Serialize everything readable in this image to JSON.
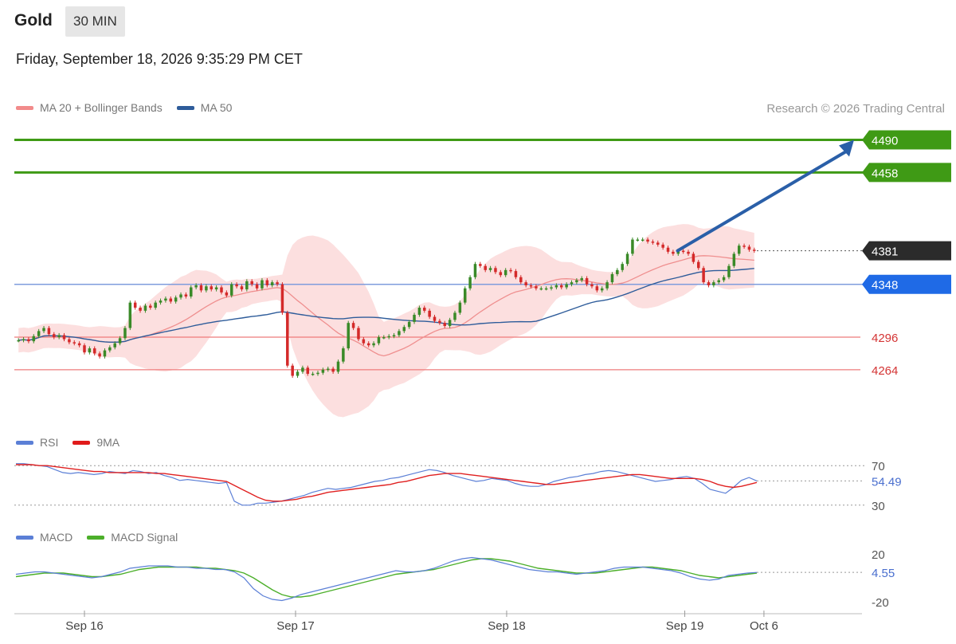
{
  "header": {
    "symbol": "Gold",
    "timeframe": "30 MIN",
    "datetime": "Friday, September 18, 2026 9:35:29 PM CET"
  },
  "legends": {
    "price": [
      {
        "label": "MA 20 + Bollinger Bands",
        "color": "#f28b8b"
      },
      {
        "label": "MA 50",
        "color": "#2e5c9a"
      }
    ],
    "rsi": [
      {
        "label": "RSI",
        "color": "#5b7fd6"
      },
      {
        "label": "9MA",
        "color": "#e01b1b"
      }
    ],
    "macd": [
      {
        "label": "MACD",
        "color": "#5b7fd6"
      },
      {
        "label": "MACD Signal",
        "color": "#4caf2a"
      }
    ]
  },
  "credit": "Research © 2026 Trading Central",
  "chart_data": [
    {
      "type": "candlestick",
      "panel": "price",
      "ylim": [
        4220,
        4510
      ],
      "xlim": [
        0,
        148
      ],
      "levels": [
        {
          "value": 4490,
          "label": "4490",
          "role": "target",
          "color": "#3f9a15"
        },
        {
          "value": 4458,
          "label": "4458",
          "role": "target",
          "color": "#3f9a15"
        },
        {
          "value": 4381,
          "label": "4381",
          "role": "last",
          "color": "#2b2b2b"
        },
        {
          "value": 4348,
          "label": "4348",
          "role": "pivot",
          "color": "#1f6ae6"
        },
        {
          "value": 4296,
          "label": "4296",
          "role": "support",
          "color": "#e04040"
        },
        {
          "value": 4264,
          "label": "4264",
          "role": "support",
          "color": "#e04040"
        }
      ],
      "arrow": {
        "from": [
          128,
          4381
        ],
        "to": [
          143,
          4490
        ],
        "color": "#2a5fa8"
      },
      "closes": [
        4293,
        4294,
        4292,
        4297,
        4302,
        4305,
        4299,
        4296,
        4298,
        4294,
        4291,
        4290,
        4288,
        4281,
        4285,
        4280,
        4277,
        4283,
        4286,
        4290,
        4295,
        4305,
        4330,
        4325,
        4322,
        4327,
        4325,
        4330,
        4332,
        4334,
        4331,
        4335,
        4338,
        4336,
        4345,
        4347,
        4342,
        4346,
        4343,
        4345,
        4340,
        4337,
        4348,
        4346,
        4343,
        4351,
        4348,
        4344,
        4352,
        4347,
        4350,
        4348,
        4320,
        4268,
        4258,
        4262,
        4266,
        4260,
        4260,
        4261,
        4264,
        4265,
        4262,
        4272,
        4285,
        4310,
        4305,
        4294,
        4290,
        4288,
        4290,
        4296,
        4296,
        4297,
        4298,
        4302,
        4306,
        4311,
        4318,
        4325,
        4322,
        4316,
        4312,
        4310,
        4307,
        4313,
        4320,
        4330,
        4344,
        4355,
        4368,
        4366,
        4362,
        4364,
        4360,
        4357,
        4362,
        4361,
        4355,
        4350,
        4347,
        4346,
        4344,
        4344,
        4344,
        4345,
        4347,
        4345,
        4348,
        4350,
        4352,
        4354,
        4348,
        4346,
        4342,
        4344,
        4350,
        4358,
        4362,
        4368,
        4378,
        4392,
        4392,
        4392,
        4390,
        4389,
        4387,
        4384,
        4380,
        4378,
        4381,
        4380,
        4378,
        4370,
        4364,
        4350,
        4347,
        4350,
        4352,
        4355,
        4366,
        4378,
        4386,
        4385,
        4382,
        4381
      ],
      "xticks": [
        {
          "x": 10,
          "label": "Sep 16"
        },
        {
          "x": 42,
          "label": "Sep 17"
        },
        {
          "x": 74,
          "label": "Sep 18"
        },
        {
          "x": 101,
          "label": "Sep 19"
        },
        {
          "x": 113,
          "label": "Oct 6"
        }
      ]
    },
    {
      "type": "line",
      "panel": "rsi",
      "ylim": [
        25,
        75
      ],
      "levels": [
        {
          "value": 70,
          "label": "70"
        },
        {
          "value": 30,
          "label": "30"
        }
      ],
      "last_label": "54.49",
      "series": [
        {
          "name": "RSI",
          "values": [
            72,
            72,
            71,
            70,
            69,
            66,
            63,
            62,
            63,
            62,
            61,
            62,
            64,
            63,
            62,
            65,
            64,
            62,
            63,
            60,
            58,
            55,
            56,
            55,
            54,
            53,
            52,
            53,
            34,
            30,
            30,
            32,
            32,
            33,
            34,
            36,
            38,
            40,
            43,
            45,
            47,
            46,
            47,
            48,
            50,
            52,
            54,
            55,
            57,
            58,
            60,
            62,
            64,
            66,
            65,
            63,
            60,
            58,
            56,
            54,
            55,
            57,
            56,
            55,
            52,
            50,
            49,
            49,
            51,
            54,
            56,
            58,
            59,
            61,
            62,
            64,
            65,
            64,
            62,
            60,
            58,
            56,
            54,
            55,
            56,
            58,
            59,
            57,
            52,
            46,
            44,
            42,
            48,
            55,
            58,
            54.49
          ]
        },
        {
          "name": "9MA",
          "values": [
            71,
            71,
            71,
            70,
            70,
            69,
            68,
            67,
            66,
            65,
            64,
            64,
            63,
            63,
            63,
            63,
            63,
            63,
            62,
            62,
            61,
            60,
            59,
            58,
            57,
            56,
            55,
            54,
            50,
            46,
            42,
            38,
            35,
            34,
            34,
            35,
            36,
            38,
            39,
            41,
            43,
            44,
            45,
            46,
            47,
            48,
            49,
            50,
            51,
            53,
            54,
            56,
            58,
            60,
            61,
            62,
            62,
            62,
            61,
            60,
            59,
            58,
            57,
            56,
            55,
            54,
            53,
            52,
            51,
            51,
            52,
            53,
            54,
            55,
            56,
            57,
            58,
            59,
            60,
            61,
            61,
            60,
            59,
            58,
            57,
            57,
            57,
            57,
            56,
            54,
            51,
            49,
            48,
            49,
            51,
            53
          ]
        }
      ]
    },
    {
      "type": "line",
      "panel": "macd",
      "ylim": [
        -22,
        22
      ],
      "levels": [
        {
          "value": 20,
          "label": "20"
        },
        {
          "value": -20,
          "label": "-20"
        }
      ],
      "last_label": "4.55",
      "series": [
        {
          "name": "MACD",
          "values": [
            3,
            4,
            5,
            5,
            4,
            3,
            2,
            1,
            0,
            1,
            3,
            5,
            8,
            9,
            10,
            10,
            10,
            9,
            9,
            8,
            8,
            7,
            7,
            5,
            0,
            -9,
            -15,
            -18,
            -19,
            -17,
            -14,
            -12,
            -10,
            -8,
            -6,
            -4,
            -2,
            0,
            2,
            4,
            6,
            5,
            5,
            6,
            8,
            11,
            14,
            16,
            17,
            16,
            15,
            13,
            11,
            9,
            7,
            6,
            5,
            5,
            4,
            3,
            4,
            5,
            6,
            8,
            9,
            9,
            9,
            8,
            7,
            6,
            4,
            1,
            -1,
            -2,
            -1,
            2,
            3,
            4,
            4.55
          ]
        },
        {
          "name": "MACD Signal",
          "values": [
            1,
            2,
            3,
            4,
            4,
            4,
            3,
            2,
            1,
            1,
            2,
            3,
            5,
            7,
            8,
            9,
            9,
            9,
            9,
            9,
            8,
            8,
            7,
            6,
            4,
            0,
            -5,
            -10,
            -14,
            -16,
            -16,
            -15,
            -13,
            -11,
            -9,
            -7,
            -5,
            -3,
            -1,
            1,
            3,
            4,
            5,
            6,
            7,
            9,
            11,
            13,
            15,
            16,
            16,
            15,
            14,
            12,
            10,
            8,
            7,
            6,
            5,
            4,
            4,
            4,
            5,
            6,
            7,
            8,
            9,
            9,
            8,
            7,
            6,
            4,
            2,
            1,
            0,
            1,
            2,
            3,
            4
          ]
        }
      ]
    }
  ]
}
